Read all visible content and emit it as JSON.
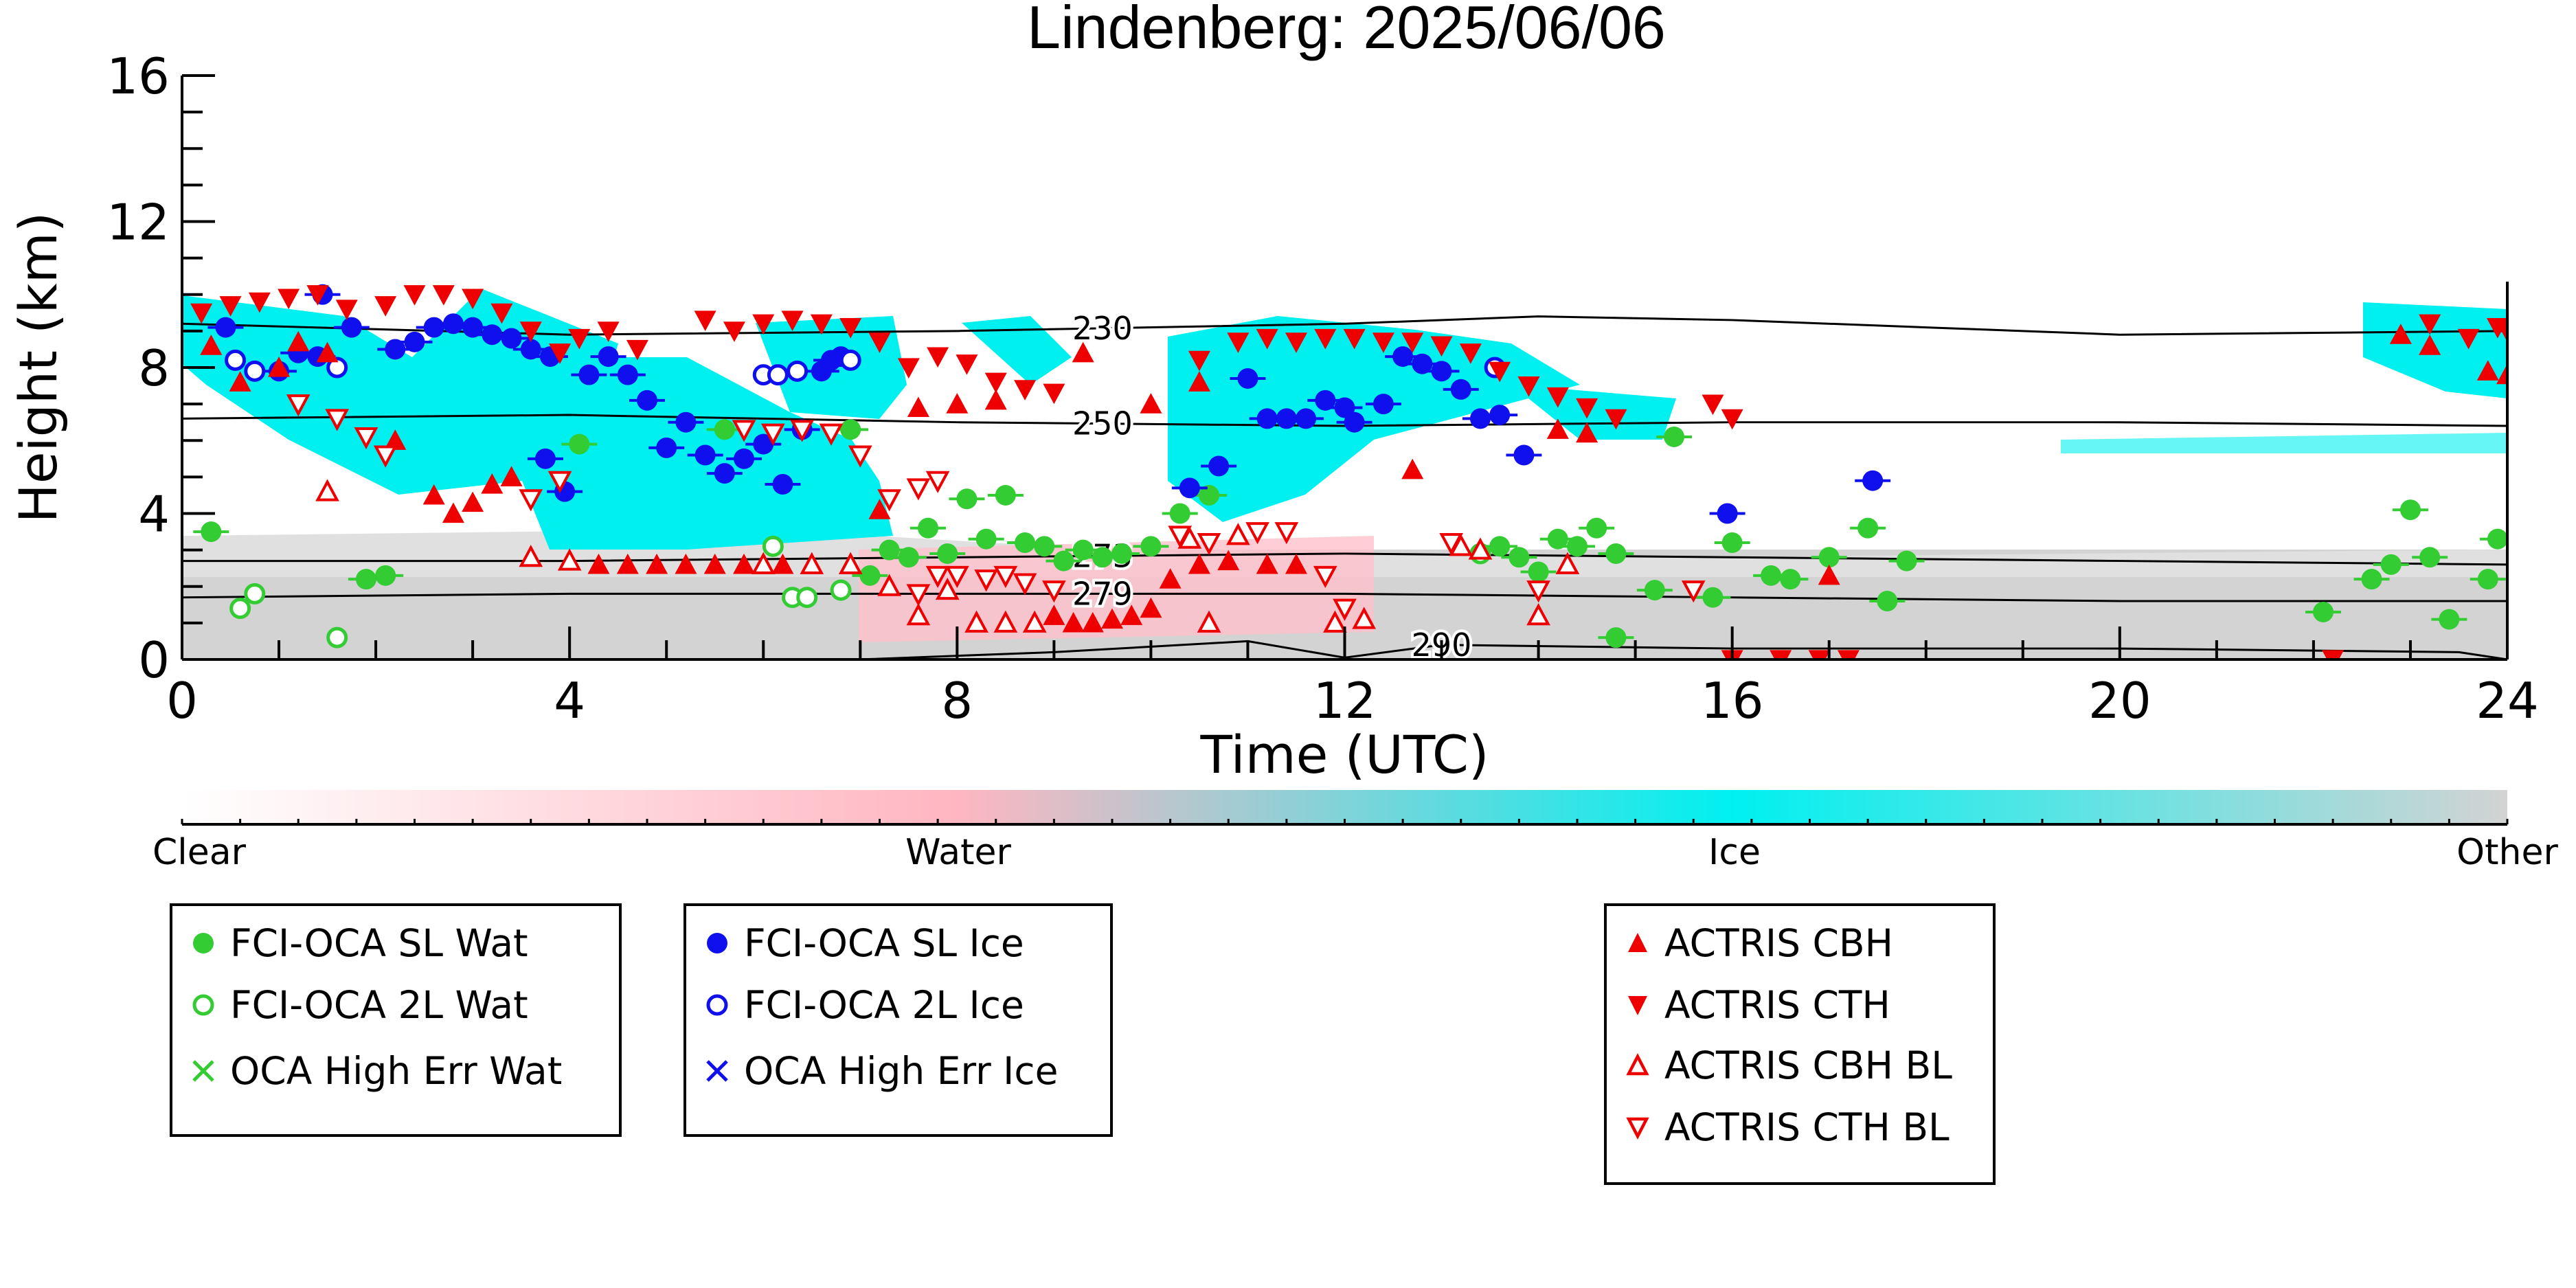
{
  "chart_data": {
    "type": "scatter",
    "title": "Lindenberg: 2025/06/06",
    "xlabel": "Time (UTC)",
    "ylabel": "Height (km)",
    "xlim": [
      0,
      24
    ],
    "ylim": [
      0,
      16
    ],
    "xticks": [
      "0",
      "4",
      "8",
      "12",
      "16",
      "20",
      "24"
    ],
    "yticks": [
      "0",
      "4",
      "8",
      "12",
      "16"
    ],
    "colorbar": {
      "labels": [
        "Clear",
        "Water",
        "Ice",
        "Other"
      ],
      "colors": [
        "#ffffff",
        "#ffb6c1",
        "#00f0f0",
        "#d3d3d3"
      ]
    },
    "isotherms": [
      {
        "label": "230",
        "x": [
          0,
          4,
          8,
          12,
          14,
          16,
          20,
          24
        ],
        "y": [
          9.2,
          8.9,
          9.0,
          9.2,
          9.4,
          9.3,
          8.9,
          9.0
        ]
      },
      {
        "label": "250",
        "x": [
          0,
          4,
          8,
          12,
          16,
          20,
          24
        ],
        "y": [
          6.6,
          6.7,
          6.5,
          6.4,
          6.5,
          6.5,
          6.4
        ]
      },
      {
        "label": "273",
        "x": [
          0,
          4,
          8,
          12,
          16,
          20,
          24
        ],
        "y": [
          2.7,
          2.7,
          2.8,
          2.9,
          2.8,
          2.7,
          2.6
        ]
      },
      {
        "label": "279",
        "x": [
          0,
          4,
          8,
          12,
          16,
          20,
          24
        ],
        "y": [
          1.7,
          1.8,
          1.8,
          1.8,
          1.7,
          1.6,
          1.6
        ]
      },
      {
        "label": "290",
        "x": [
          7,
          9,
          11,
          12,
          13,
          16,
          20,
          23.5,
          24
        ],
        "y": [
          0,
          0.2,
          0.5,
          0.05,
          0.4,
          0.3,
          0.3,
          0.2,
          0
        ]
      }
    ],
    "series": [
      {
        "name": "FCI-OCA SL Wat",
        "color": "#33cc33",
        "marker": "circle-filled",
        "points": [
          [
            0.3,
            3.5
          ],
          [
            4.1,
            5.9
          ],
          [
            5.6,
            6.3
          ],
          [
            6.9,
            6.3
          ],
          [
            7.1,
            2.3
          ],
          [
            7.3,
            3.0
          ],
          [
            7.5,
            2.8
          ],
          [
            7.7,
            3.6
          ],
          [
            7.9,
            2.9
          ],
          [
            8.1,
            4.4
          ],
          [
            8.3,
            3.3
          ],
          [
            8.5,
            4.5
          ],
          [
            8.7,
            3.2
          ],
          [
            8.9,
            3.1
          ],
          [
            9.1,
            2.7
          ],
          [
            9.3,
            3.0
          ],
          [
            9.5,
            2.8
          ],
          [
            9.7,
            2.9
          ],
          [
            10.0,
            3.1
          ],
          [
            10.3,
            4.0
          ],
          [
            10.6,
            4.5
          ],
          [
            13.6,
            3.1
          ],
          [
            13.8,
            2.8
          ],
          [
            14.0,
            2.4
          ],
          [
            14.2,
            3.3
          ],
          [
            14.4,
            3.1
          ],
          [
            14.6,
            3.6
          ],
          [
            14.8,
            2.9
          ],
          [
            14.8,
            0.6
          ],
          [
            15.2,
            1.9
          ],
          [
            15.4,
            6.1
          ],
          [
            15.8,
            1.7
          ],
          [
            16.0,
            3.2
          ],
          [
            16.4,
            2.3
          ],
          [
            16.6,
            2.2
          ],
          [
            17.0,
            2.8
          ],
          [
            17.4,
            3.6
          ],
          [
            17.6,
            1.6
          ],
          [
            17.8,
            2.7
          ],
          [
            22.1,
            1.3
          ],
          [
            22.6,
            2.2
          ],
          [
            22.8,
            2.6
          ],
          [
            23.0,
            4.1
          ],
          [
            23.2,
            2.8
          ],
          [
            23.4,
            1.1
          ],
          [
            23.8,
            2.2
          ],
          [
            23.9,
            3.3
          ],
          [
            1.9,
            2.2
          ],
          [
            2.1,
            2.3
          ]
        ]
      },
      {
        "name": "FCI-OCA 2L Wat",
        "color": "#33cc33",
        "marker": "circle-open",
        "points": [
          [
            0.6,
            1.4
          ],
          [
            0.75,
            1.8
          ],
          [
            1.6,
            0.6
          ],
          [
            6.1,
            3.1
          ],
          [
            6.3,
            1.7
          ],
          [
            6.45,
            1.7
          ],
          [
            6.8,
            1.9
          ],
          [
            13.4,
            2.9
          ]
        ]
      },
      {
        "name": "FCI-OCA SL Ice",
        "color": "#1010ee",
        "marker": "circle-filled",
        "points": [
          [
            0.45,
            9.1
          ],
          [
            1.0,
            7.9
          ],
          [
            1.2,
            8.4
          ],
          [
            1.4,
            8.3
          ],
          [
            1.45,
            10.0
          ],
          [
            1.75,
            9.1
          ],
          [
            2.2,
            8.5
          ],
          [
            2.4,
            8.7
          ],
          [
            2.6,
            9.1
          ],
          [
            2.8,
            9.2
          ],
          [
            3.0,
            9.1
          ],
          [
            3.2,
            8.9
          ],
          [
            3.4,
            8.8
          ],
          [
            3.6,
            8.5
          ],
          [
            3.8,
            8.3
          ],
          [
            3.75,
            5.5
          ],
          [
            3.95,
            4.6
          ],
          [
            4.2,
            7.8
          ],
          [
            4.4,
            8.3
          ],
          [
            4.6,
            7.8
          ],
          [
            4.8,
            7.1
          ],
          [
            5.0,
            5.8
          ],
          [
            5.2,
            6.5
          ],
          [
            5.4,
            5.6
          ],
          [
            5.6,
            5.1
          ],
          [
            5.8,
            5.5
          ],
          [
            6.0,
            5.9
          ],
          [
            6.2,
            4.8
          ],
          [
            6.4,
            6.3
          ],
          [
            6.6,
            7.9
          ],
          [
            6.7,
            8.2
          ],
          [
            6.8,
            8.3
          ],
          [
            10.4,
            4.7
          ],
          [
            10.7,
            5.3
          ],
          [
            11.0,
            7.7
          ],
          [
            11.2,
            6.6
          ],
          [
            11.4,
            6.6
          ],
          [
            11.6,
            6.6
          ],
          [
            11.8,
            7.1
          ],
          [
            12.0,
            6.9
          ],
          [
            12.1,
            6.5
          ],
          [
            12.4,
            7.0
          ],
          [
            12.6,
            8.3
          ],
          [
            12.8,
            8.1
          ],
          [
            13.0,
            7.9
          ],
          [
            13.2,
            7.4
          ],
          [
            13.4,
            6.6
          ],
          [
            13.6,
            6.7
          ],
          [
            13.85,
            5.6
          ],
          [
            15.95,
            4.0
          ],
          [
            17.45,
            4.9
          ]
        ]
      },
      {
        "name": "FCI-OCA 2L Ice",
        "color": "#1010ee",
        "marker": "circle-open",
        "points": [
          [
            0.55,
            8.2
          ],
          [
            0.75,
            7.9
          ],
          [
            1.6,
            8.0
          ],
          [
            6.0,
            7.8
          ],
          [
            6.15,
            7.8
          ],
          [
            6.35,
            7.9
          ],
          [
            6.9,
            8.2
          ],
          [
            13.55,
            8.0
          ]
        ]
      },
      {
        "name": "OCA High Err Wat",
        "color": "#33cc33",
        "marker": "x",
        "points": []
      },
      {
        "name": "OCA High Err Ice",
        "color": "#1010ee",
        "marker": "x",
        "points": []
      },
      {
        "name": "ACTRIS CBH",
        "color": "#ee0000",
        "marker": "triangle-up-filled",
        "points": [
          [
            0.3,
            8.6
          ],
          [
            0.6,
            7.6
          ],
          [
            1.0,
            8.0
          ],
          [
            1.2,
            8.7
          ],
          [
            1.5,
            8.4
          ],
          [
            2.2,
            6.0
          ],
          [
            2.6,
            4.5
          ],
          [
            2.8,
            4.0
          ],
          [
            3.0,
            4.3
          ],
          [
            3.2,
            4.8
          ],
          [
            3.4,
            5.0
          ],
          [
            4.0,
            2.7
          ],
          [
            4.3,
            2.6
          ],
          [
            4.6,
            2.6
          ],
          [
            4.9,
            2.6
          ],
          [
            5.2,
            2.6
          ],
          [
            5.5,
            2.6
          ],
          [
            5.8,
            2.6
          ],
          [
            6.2,
            2.6
          ],
          [
            7.2,
            4.1
          ],
          [
            7.6,
            6.9
          ],
          [
            8.0,
            7.0
          ],
          [
            8.4,
            7.1
          ],
          [
            9.0,
            1.2
          ],
          [
            9.2,
            1.0
          ],
          [
            9.4,
            1.0
          ],
          [
            9.6,
            1.1
          ],
          [
            9.8,
            1.2
          ],
          [
            9.3,
            8.4
          ],
          [
            10.0,
            1.4
          ],
          [
            10.2,
            2.2
          ],
          [
            10.5,
            2.6
          ],
          [
            10.8,
            2.7
          ],
          [
            11.2,
            2.6
          ],
          [
            11.5,
            2.6
          ],
          [
            10.0,
            7.0
          ],
          [
            10.5,
            7.6
          ],
          [
            12.7,
            5.2
          ],
          [
            14.2,
            6.3
          ],
          [
            14.5,
            6.2
          ],
          [
            17.0,
            2.3
          ],
          [
            22.9,
            8.9
          ],
          [
            23.2,
            8.6
          ],
          [
            23.8,
            7.9
          ],
          [
            24.0,
            7.8
          ]
        ]
      },
      {
        "name": "ACTRIS CTH",
        "color": "#ee0000",
        "marker": "triangle-down-filled",
        "points": [
          [
            0.2,
            9.5
          ],
          [
            0.5,
            9.7
          ],
          [
            0.8,
            9.8
          ],
          [
            1.1,
            9.9
          ],
          [
            1.4,
            10.0
          ],
          [
            1.7,
            9.6
          ],
          [
            2.1,
            9.7
          ],
          [
            2.4,
            10.0
          ],
          [
            2.7,
            10.0
          ],
          [
            3.0,
            9.9
          ],
          [
            3.3,
            9.5
          ],
          [
            3.6,
            9.0
          ],
          [
            3.9,
            8.4
          ],
          [
            4.1,
            8.8
          ],
          [
            4.4,
            9.0
          ],
          [
            4.7,
            8.5
          ],
          [
            5.4,
            9.3
          ],
          [
            5.7,
            9.0
          ],
          [
            6.0,
            9.2
          ],
          [
            6.3,
            9.3
          ],
          [
            6.6,
            9.2
          ],
          [
            6.9,
            9.1
          ],
          [
            7.2,
            8.7
          ],
          [
            7.5,
            8.0
          ],
          [
            7.8,
            8.3
          ],
          [
            8.1,
            8.1
          ],
          [
            8.4,
            7.6
          ],
          [
            8.7,
            7.4
          ],
          [
            9.0,
            7.3
          ],
          [
            10.5,
            8.2
          ],
          [
            10.9,
            8.7
          ],
          [
            11.2,
            8.8
          ],
          [
            11.5,
            8.7
          ],
          [
            11.8,
            8.8
          ],
          [
            12.1,
            8.8
          ],
          [
            12.4,
            8.7
          ],
          [
            12.7,
            8.7
          ],
          [
            13.0,
            8.6
          ],
          [
            13.3,
            8.4
          ],
          [
            13.6,
            7.9
          ],
          [
            13.9,
            7.5
          ],
          [
            14.2,
            7.2
          ],
          [
            14.5,
            6.9
          ],
          [
            14.8,
            6.6
          ],
          [
            15.8,
            7.0
          ],
          [
            16.0,
            6.6
          ],
          [
            16.0,
            0.0
          ],
          [
            16.5,
            0.0
          ],
          [
            16.9,
            0.0
          ],
          [
            17.2,
            0.0
          ],
          [
            22.2,
            0.0
          ],
          [
            23.2,
            9.2
          ],
          [
            23.6,
            8.8
          ],
          [
            23.9,
            9.1
          ],
          [
            24.0,
            9.0
          ]
        ]
      },
      {
        "name": "ACTRIS CBH BL",
        "color": "#ee0000",
        "marker": "triangle-up-open",
        "points": [
          [
            1.5,
            4.6
          ],
          [
            3.6,
            2.8
          ],
          [
            4.0,
            2.7
          ],
          [
            6.0,
            2.6
          ],
          [
            6.5,
            2.6
          ],
          [
            6.9,
            2.6
          ],
          [
            7.3,
            2.0
          ],
          [
            7.6,
            1.2
          ],
          [
            7.9,
            1.9
          ],
          [
            8.2,
            1.0
          ],
          [
            8.5,
            1.0
          ],
          [
            8.8,
            1.0
          ],
          [
            10.4,
            3.3
          ],
          [
            10.6,
            1.0
          ],
          [
            10.9,
            3.4
          ],
          [
            11.9,
            1.0
          ],
          [
            12.2,
            1.1
          ],
          [
            13.2,
            3.1
          ],
          [
            13.4,
            3.0
          ],
          [
            14.0,
            1.2
          ],
          [
            14.3,
            2.6
          ]
        ]
      },
      {
        "name": "ACTRIS CTH BL",
        "color": "#ee0000",
        "marker": "triangle-down-open",
        "points": [
          [
            1.2,
            7.0
          ],
          [
            1.6,
            6.6
          ],
          [
            1.9,
            6.1
          ],
          [
            2.1,
            5.6
          ],
          [
            3.6,
            4.4
          ],
          [
            3.9,
            4.9
          ],
          [
            5.8,
            6.3
          ],
          [
            6.1,
            6.2
          ],
          [
            6.4,
            6.3
          ],
          [
            6.7,
            6.2
          ],
          [
            7.0,
            5.6
          ],
          [
            7.3,
            4.4
          ],
          [
            7.6,
            4.7
          ],
          [
            7.8,
            4.9
          ],
          [
            7.6,
            1.8
          ],
          [
            7.8,
            2.3
          ],
          [
            8.0,
            2.3
          ],
          [
            8.3,
            2.2
          ],
          [
            8.5,
            2.3
          ],
          [
            8.7,
            2.1
          ],
          [
            9.0,
            1.9
          ],
          [
            10.3,
            3.4
          ],
          [
            10.6,
            3.2
          ],
          [
            11.1,
            3.5
          ],
          [
            11.4,
            3.5
          ],
          [
            11.8,
            2.3
          ],
          [
            12.0,
            1.4
          ],
          [
            13.1,
            3.2
          ],
          [
            14.0,
            1.9
          ],
          [
            15.6,
            1.9
          ]
        ]
      }
    ]
  }
}
